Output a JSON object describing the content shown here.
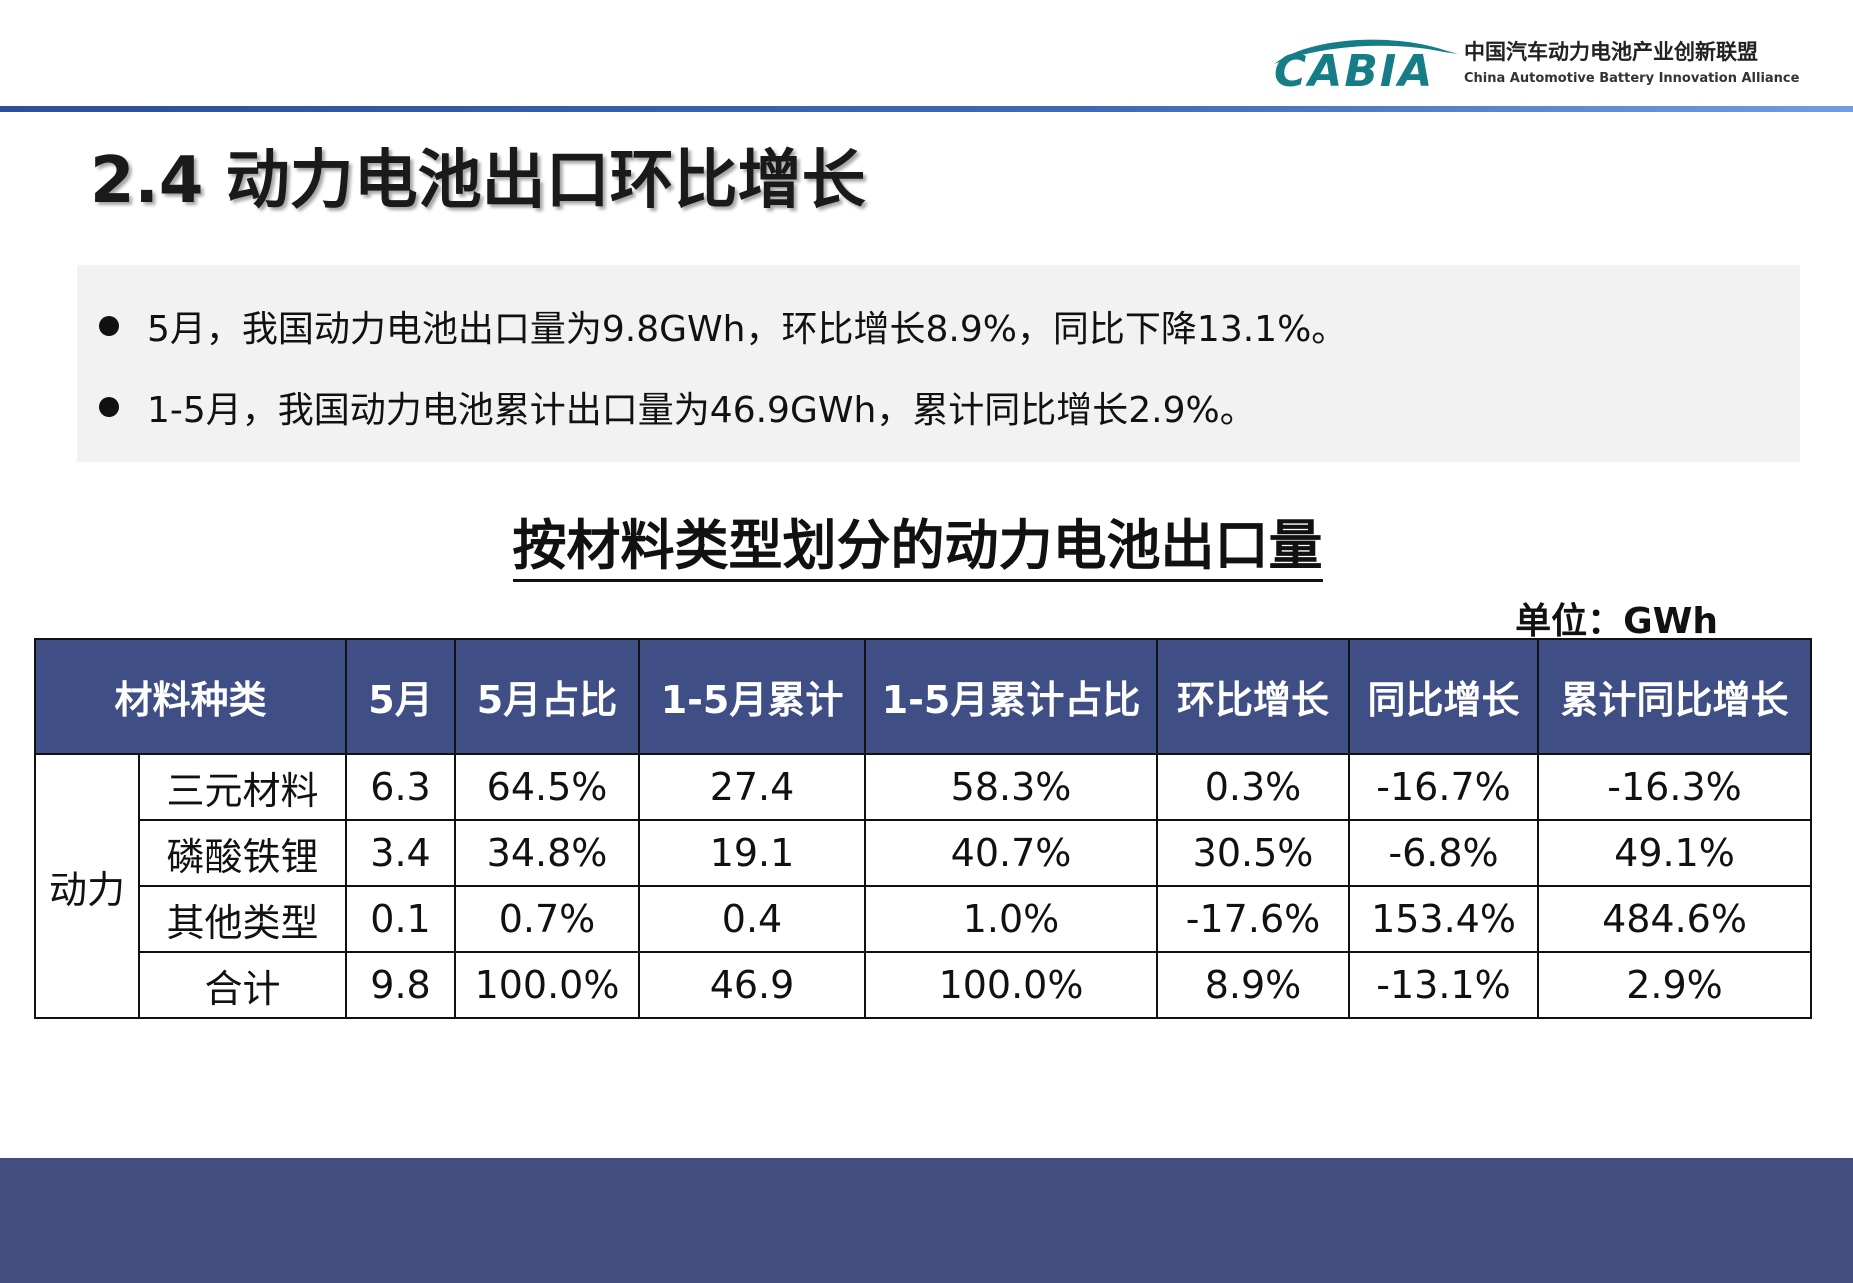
{
  "header": {
    "logo_text": "CABIA",
    "org_name_cn": "中国汽车动力电池产业创新联盟",
    "org_name_en": "China Automotive Battery Innovation Alliance"
  },
  "page_title": "2.4 动力电池出口环比增长",
  "summary": [
    "5月，我国动力电池出口量为9.8GWh，环比增长8.9%，同比下降13.1%。",
    "1-5月，我国动力电池累计出口量为46.9GWh，累计同比增长2.9%。"
  ],
  "table": {
    "title": "按材料类型划分的动力电池出口量",
    "unit": "单位：GWh",
    "group_label": "动力",
    "headers": [
      "材料种类",
      "5月",
      "5月占比",
      "1-5月累计",
      "1-5月累计占比",
      "环比增长",
      "同比增长",
      "累计同比增长"
    ],
    "rows": [
      [
        "三元材料",
        "6.3",
        "64.5%",
        "27.4",
        "58.3%",
        "0.3%",
        "-16.7%",
        "-16.3%"
      ],
      [
        "磷酸铁锂",
        "3.4",
        "34.8%",
        "19.1",
        "40.7%",
        "30.5%",
        "-6.8%",
        "49.1%"
      ],
      [
        "其他类型",
        "0.1",
        "0.7%",
        "0.4",
        "1.0%",
        "-17.6%",
        "153.4%",
        "484.6%"
      ],
      [
        "合计",
        "9.8",
        "100.0%",
        "46.9",
        "100.0%",
        "8.9%",
        "-13.1%",
        "2.9%"
      ]
    ]
  },
  "colors": {
    "header_fill": "#3f4f86",
    "footer_fill": "#424e80",
    "logo_teal": "#147d86",
    "summary_bg": "#f2f2f2"
  }
}
